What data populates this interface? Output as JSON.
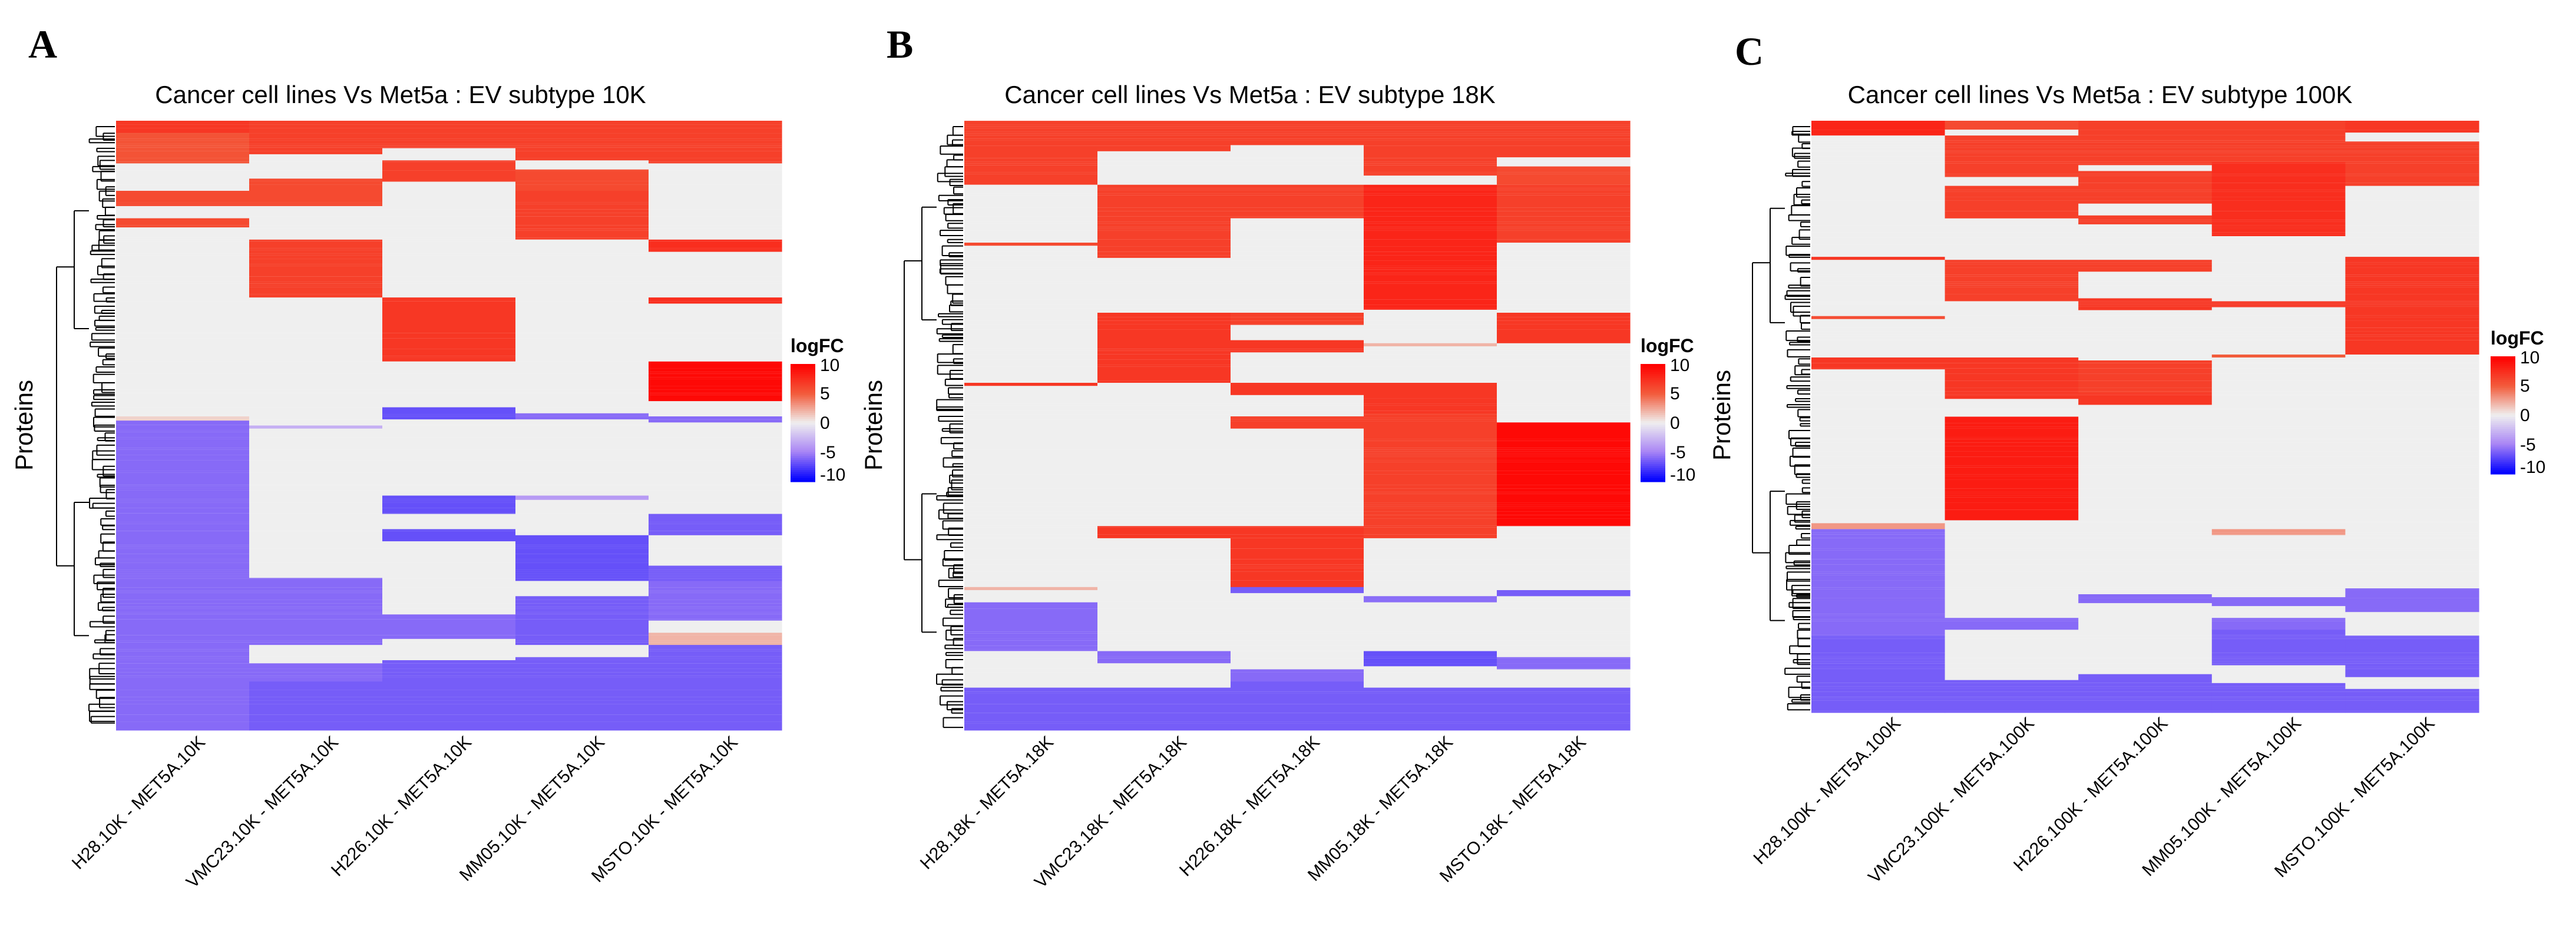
{
  "figure": {
    "panels": [
      "A",
      "B",
      "C"
    ]
  },
  "colors": {
    "high": "#ff0000",
    "mid_high": "#f25c3c",
    "neutral": "#efefef",
    "mid_low": "#a985f5",
    "low": "#0000ff",
    "light_pos": "#f6c7bd",
    "dendrogram": "#000000"
  },
  "chart_data": [
    {
      "type": "heatmap",
      "panel_label": "A",
      "title": "Cancer cell lines Vs Met5a : EV subtype 10K",
      "ylabel": "Proteins",
      "columns": [
        "H28.10K - MET5A.10K",
        "VMC23.10K - MET5A.10K",
        "H226.10K - MET5A.10K",
        "MM05.10K - MET5A.10K",
        "MSTO.10K - MET5A.10K"
      ],
      "legend": {
        "title": "logFC",
        "ticks": [
          10,
          5,
          0,
          -5,
          -10
        ],
        "range": [
          -10,
          10
        ]
      },
      "blocks": [
        [
          [
            0,
            0.02,
            7
          ],
          [
            0.02,
            0.07,
            5.5
          ],
          [
            0.07,
            0.115,
            0
          ],
          [
            0.115,
            0.14,
            6
          ],
          [
            0.14,
            0.16,
            0
          ],
          [
            0.16,
            0.175,
            6
          ],
          [
            0.175,
            0.485,
            0
          ],
          [
            0.485,
            0.492,
            1
          ],
          [
            0.492,
            1,
            -6
          ]
        ],
        [
          [
            0,
            0.055,
            6.5
          ],
          [
            0.055,
            0.095,
            0
          ],
          [
            0.095,
            0.14,
            6
          ],
          [
            0.14,
            0.195,
            0
          ],
          [
            0.195,
            0.29,
            6.5
          ],
          [
            0.29,
            0.5,
            0
          ],
          [
            0.5,
            0.505,
            -3
          ],
          [
            0.505,
            0.75,
            0
          ],
          [
            0.75,
            0.86,
            -6
          ],
          [
            0.86,
            0.89,
            0
          ],
          [
            0.89,
            0.92,
            -6
          ],
          [
            0.92,
            1,
            -6.5
          ]
        ],
        [
          [
            0,
            0.045,
            6.5
          ],
          [
            0.045,
            0.065,
            0
          ],
          [
            0.065,
            0.1,
            6.5
          ],
          [
            0.1,
            0.29,
            0
          ],
          [
            0.29,
            0.395,
            7
          ],
          [
            0.395,
            0.47,
            0
          ],
          [
            0.47,
            0.49,
            -7
          ],
          [
            0.49,
            0.615,
            0
          ],
          [
            0.615,
            0.645,
            -7
          ],
          [
            0.645,
            0.67,
            0
          ],
          [
            0.67,
            0.69,
            -7
          ],
          [
            0.69,
            0.81,
            0
          ],
          [
            0.81,
            0.85,
            -6
          ],
          [
            0.85,
            0.885,
            0
          ],
          [
            0.885,
            1,
            -6.5
          ]
        ],
        [
          [
            0,
            0.065,
            6.5
          ],
          [
            0.065,
            0.08,
            0
          ],
          [
            0.08,
            0.115,
            6
          ],
          [
            0.115,
            0.195,
            6.5
          ],
          [
            0.195,
            0.48,
            0
          ],
          [
            0.48,
            0.49,
            -6
          ],
          [
            0.49,
            0.615,
            0
          ],
          [
            0.615,
            0.622,
            -4
          ],
          [
            0.622,
            0.68,
            0
          ],
          [
            0.68,
            0.755,
            -7
          ],
          [
            0.755,
            0.78,
            0
          ],
          [
            0.78,
            0.86,
            -6.5
          ],
          [
            0.86,
            0.88,
            0
          ],
          [
            0.88,
            1,
            -6.5
          ]
        ],
        [
          [
            0,
            0.07,
            6.5
          ],
          [
            0.07,
            0.195,
            0
          ],
          [
            0.195,
            0.215,
            7.5
          ],
          [
            0.215,
            0.29,
            0
          ],
          [
            0.29,
            0.3,
            7.5
          ],
          [
            0.3,
            0.395,
            0
          ],
          [
            0.395,
            0.46,
            9.5
          ],
          [
            0.46,
            0.485,
            0
          ],
          [
            0.485,
            0.495,
            -6
          ],
          [
            0.495,
            0.645,
            0
          ],
          [
            0.645,
            0.68,
            -6.5
          ],
          [
            0.68,
            0.73,
            0
          ],
          [
            0.73,
            0.755,
            -6.5
          ],
          [
            0.755,
            0.82,
            -6
          ],
          [
            0.82,
            0.84,
            0
          ],
          [
            0.84,
            0.86,
            2
          ],
          [
            0.86,
            1,
            -6.5
          ]
        ]
      ]
    },
    {
      "type": "heatmap",
      "panel_label": "B",
      "title": "Cancer cell lines Vs Met5a : EV subtype 18K",
      "ylabel": "Proteins",
      "columns": [
        "H28.18K - MET5A.18K",
        "VMC23.18K - MET5A.18K",
        "H226.18K - MET5A.18K",
        "MM05.18K - MET5A.18K",
        "MSTO.18K - MET5A.18K"
      ],
      "legend": {
        "title": "logFC",
        "ticks": [
          10,
          5,
          0,
          -5,
          -10
        ],
        "range": [
          -10,
          10
        ]
      },
      "blocks": [
        [
          [
            0,
            0.105,
            6.5
          ],
          [
            0.105,
            0.2,
            0
          ],
          [
            0.2,
            0.205,
            6
          ],
          [
            0.205,
            0.43,
            0
          ],
          [
            0.43,
            0.435,
            7
          ],
          [
            0.435,
            0.765,
            0
          ],
          [
            0.765,
            0.77,
            2
          ],
          [
            0.77,
            0.79,
            0
          ],
          [
            0.79,
            0.87,
            -6
          ],
          [
            0.87,
            0.93,
            0
          ],
          [
            0.93,
            1,
            -6.5
          ]
        ],
        [
          [
            0,
            0.05,
            6.5
          ],
          [
            0.05,
            0.105,
            0
          ],
          [
            0.105,
            0.225,
            6.5
          ],
          [
            0.225,
            0.315,
            0
          ],
          [
            0.315,
            0.43,
            7
          ],
          [
            0.43,
            0.665,
            0
          ],
          [
            0.665,
            0.685,
            7
          ],
          [
            0.685,
            0.79,
            0
          ],
          [
            0.79,
            0.87,
            0
          ],
          [
            0.87,
            0.89,
            -6
          ],
          [
            0.89,
            0.93,
            0
          ],
          [
            0.93,
            1,
            -6.5
          ]
        ],
        [
          [
            0,
            0.04,
            6.5
          ],
          [
            0.04,
            0.105,
            0
          ],
          [
            0.105,
            0.16,
            6.5
          ],
          [
            0.16,
            0.315,
            0
          ],
          [
            0.315,
            0.335,
            6.5
          ],
          [
            0.335,
            0.36,
            0
          ],
          [
            0.36,
            0.38,
            7
          ],
          [
            0.38,
            0.43,
            0
          ],
          [
            0.43,
            0.45,
            7
          ],
          [
            0.45,
            0.485,
            0
          ],
          [
            0.485,
            0.505,
            6.5
          ],
          [
            0.505,
            0.665,
            0
          ],
          [
            0.665,
            0.765,
            7
          ],
          [
            0.765,
            0.775,
            -6.5
          ],
          [
            0.775,
            0.9,
            0
          ],
          [
            0.9,
            0.92,
            -6
          ],
          [
            0.92,
            1,
            -6.5
          ]
        ],
        [
          [
            0,
            0.09,
            6.5
          ],
          [
            0.09,
            0.105,
            0
          ],
          [
            0.105,
            0.31,
            8
          ],
          [
            0.31,
            0.365,
            0
          ],
          [
            0.365,
            0.37,
            2
          ],
          [
            0.37,
            0.43,
            0
          ],
          [
            0.43,
            0.48,
            7
          ],
          [
            0.48,
            0.685,
            6.5
          ],
          [
            0.685,
            0.78,
            0
          ],
          [
            0.78,
            0.79,
            -6
          ],
          [
            0.79,
            0.87,
            0
          ],
          [
            0.87,
            0.895,
            -7
          ],
          [
            0.895,
            0.93,
            0
          ],
          [
            0.93,
            1,
            -6.5
          ]
        ],
        [
          [
            0,
            0.06,
            6.5
          ],
          [
            0.06,
            0.075,
            0
          ],
          [
            0.075,
            0.105,
            6
          ],
          [
            0.105,
            0.2,
            6.5
          ],
          [
            0.2,
            0.315,
            0
          ],
          [
            0.315,
            0.365,
            7
          ],
          [
            0.365,
            0.495,
            0
          ],
          [
            0.495,
            0.665,
            9.5
          ],
          [
            0.665,
            0.77,
            0
          ],
          [
            0.77,
            0.78,
            -6.5
          ],
          [
            0.78,
            0.88,
            0
          ],
          [
            0.88,
            0.9,
            -6
          ],
          [
            0.9,
            0.93,
            0
          ],
          [
            0.93,
            1,
            -6.5
          ]
        ]
      ]
    },
    {
      "type": "heatmap",
      "panel_label": "C",
      "title": "Cancer cell lines Vs Met5a : EV subtype 100K",
      "ylabel": "Proteins",
      "columns": [
        "H28.100K - MET5A.100K",
        "VMC23.100K - MET5A.100K",
        "H226.100K - MET5A.100K",
        "MM05.100K - MET5A.100K",
        "MSTO.100K - MET5A.100K"
      ],
      "legend": {
        "title": "logFC",
        "ticks": [
          10,
          5,
          0,
          -5,
          -10
        ],
        "range": [
          -10,
          10
        ]
      },
      "blocks": [
        [
          [
            0,
            0.025,
            8
          ],
          [
            0.025,
            0.23,
            0
          ],
          [
            0.23,
            0.235,
            7
          ],
          [
            0.235,
            0.33,
            0
          ],
          [
            0.33,
            0.335,
            6
          ],
          [
            0.335,
            0.4,
            0
          ],
          [
            0.4,
            0.42,
            7
          ],
          [
            0.42,
            0.68,
            0
          ],
          [
            0.68,
            0.69,
            3
          ],
          [
            0.69,
            0.81,
            -6
          ],
          [
            0.81,
            0.87,
            -6
          ],
          [
            0.87,
            1,
            -6.5
          ]
        ],
        [
          [
            0,
            0.015,
            6
          ],
          [
            0.015,
            0.025,
            0
          ],
          [
            0.025,
            0.095,
            6.5
          ],
          [
            0.095,
            0.11,
            0
          ],
          [
            0.11,
            0.165,
            6.5
          ],
          [
            0.165,
            0.235,
            0
          ],
          [
            0.235,
            0.305,
            6.5
          ],
          [
            0.305,
            0.4,
            0
          ],
          [
            0.4,
            0.47,
            7
          ],
          [
            0.47,
            0.5,
            0
          ],
          [
            0.5,
            0.675,
            8.5
          ],
          [
            0.675,
            0.84,
            0
          ],
          [
            0.84,
            0.86,
            -6
          ],
          [
            0.86,
            0.945,
            0
          ],
          [
            0.945,
            1,
            -6.5
          ]
        ],
        [
          [
            0,
            0.075,
            6.5
          ],
          [
            0.075,
            0.085,
            0
          ],
          [
            0.085,
            0.14,
            6.5
          ],
          [
            0.14,
            0.16,
            0
          ],
          [
            0.16,
            0.175,
            6.5
          ],
          [
            0.175,
            0.235,
            0
          ],
          [
            0.235,
            0.255,
            6.5
          ],
          [
            0.255,
            0.3,
            0
          ],
          [
            0.3,
            0.32,
            7
          ],
          [
            0.32,
            0.405,
            0
          ],
          [
            0.405,
            0.46,
            6.5
          ],
          [
            0.46,
            0.48,
            7
          ],
          [
            0.48,
            0.8,
            0
          ],
          [
            0.8,
            0.815,
            -6
          ],
          [
            0.815,
            0.935,
            0
          ],
          [
            0.935,
            1,
            -6.5
          ]
        ],
        [
          [
            0,
            0.07,
            6.5
          ],
          [
            0.07,
            0.195,
            7.5
          ],
          [
            0.195,
            0.305,
            0
          ],
          [
            0.305,
            0.315,
            7
          ],
          [
            0.315,
            0.395,
            0
          ],
          [
            0.395,
            0.4,
            5
          ],
          [
            0.4,
            0.69,
            0
          ],
          [
            0.69,
            0.7,
            3
          ],
          [
            0.7,
            0.805,
            0
          ],
          [
            0.805,
            0.82,
            -6
          ],
          [
            0.82,
            0.84,
            0
          ],
          [
            0.84,
            0.86,
            -6
          ],
          [
            0.86,
            0.92,
            -6.5
          ],
          [
            0.92,
            0.95,
            0
          ],
          [
            0.95,
            1,
            -6.5
          ]
        ],
        [
          [
            0,
            0.02,
            7
          ],
          [
            0.02,
            0.035,
            0
          ],
          [
            0.035,
            0.11,
            6.5
          ],
          [
            0.11,
            0.23,
            0
          ],
          [
            0.23,
            0.395,
            7
          ],
          [
            0.395,
            0.79,
            0
          ],
          [
            0.79,
            0.83,
            -6
          ],
          [
            0.83,
            0.87,
            0
          ],
          [
            0.87,
            0.94,
            -6.5
          ],
          [
            0.94,
            0.96,
            0
          ],
          [
            0.96,
            1,
            -6.5
          ]
        ]
      ]
    }
  ]
}
